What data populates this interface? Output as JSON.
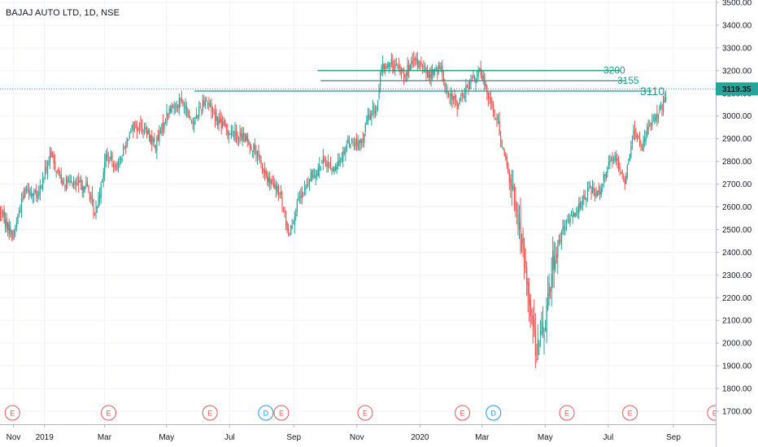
{
  "header": {
    "title": "BAJAJ AUTO LTD, 1D, NSE"
  },
  "colors": {
    "up": "#26a69a",
    "down": "#ef5350",
    "annotation": "#1c9a8a",
    "earnings": "#e05a5a",
    "dividend": "#2196f3",
    "grid": "#f0f3fa",
    "axis_text": "#131722",
    "price_label_bg": "#26a69a"
  },
  "chart_data": {
    "type": "candlestick",
    "ylim": [
      1670,
      3520
    ],
    "y_ticks": [
      "3500.00",
      "3400.00",
      "3300.00",
      "3200.00",
      "3100.00",
      "3000.00",
      "2900.00",
      "2800.00",
      "2700.00",
      "2600.00",
      "2500.00",
      "2400.00",
      "2300.00",
      "2200.00",
      "2100.00",
      "2000.00",
      "1900.00",
      "1800.00",
      "1700.00"
    ],
    "y_tick_values": [
      3500,
      3400,
      3300,
      3200,
      3100,
      3000,
      2900,
      2800,
      2700,
      2600,
      2500,
      2400,
      2300,
      2200,
      2100,
      2000,
      1900,
      1800,
      1700
    ],
    "x_ticks": [
      {
        "label": "Nov",
        "day": 13
      },
      {
        "label": "2019",
        "day": 43
      },
      {
        "label": "Mar",
        "day": 101
      },
      {
        "label": "May",
        "day": 161
      },
      {
        "label": "Jul",
        "day": 222
      },
      {
        "label": "Sep",
        "day": 284
      },
      {
        "label": "Nov",
        "day": 345
      },
      {
        "label": "2020",
        "day": 406
      },
      {
        "label": "Mar",
        "day": 466
      },
      {
        "label": "May",
        "day": 527
      },
      {
        "label": "Jul",
        "day": 588
      },
      {
        "label": "Sep",
        "day": 651
      }
    ],
    "price_path": [
      [
        0,
        2580
      ],
      [
        10,
        2470
      ],
      [
        20,
        2690
      ],
      [
        30,
        2640
      ],
      [
        40,
        2830
      ],
      [
        50,
        2710
      ],
      [
        60,
        2700
      ],
      [
        70,
        2690
      ],
      [
        76,
        2560
      ],
      [
        85,
        2820
      ],
      [
        95,
        2780
      ],
      [
        105,
        2950
      ],
      [
        115,
        2950
      ],
      [
        125,
        2870
      ],
      [
        135,
        3020
      ],
      [
        145,
        3070
      ],
      [
        155,
        2970
      ],
      [
        165,
        3080
      ],
      [
        175,
        2980
      ],
      [
        185,
        2930
      ],
      [
        195,
        2910
      ],
      [
        205,
        2850
      ],
      [
        215,
        2720
      ],
      [
        225,
        2660
      ],
      [
        232,
        2480
      ],
      [
        240,
        2620
      ],
      [
        250,
        2730
      ],
      [
        260,
        2800
      ],
      [
        270,
        2760
      ],
      [
        280,
        2890
      ],
      [
        290,
        2870
      ],
      [
        296,
        2990
      ],
      [
        303,
        3040
      ],
      [
        307,
        3210
      ],
      [
        315,
        3230
      ],
      [
        325,
        3190
      ],
      [
        335,
        3240
      ],
      [
        345,
        3180
      ],
      [
        355,
        3210
      ],
      [
        360,
        3100
      ],
      [
        368,
        3050
      ],
      [
        378,
        3140
      ],
      [
        385,
        3190
      ],
      [
        390,
        3150
      ],
      [
        395,
        3060
      ],
      [
        402,
        2940
      ],
      [
        410,
        2720
      ],
      [
        416,
        2580
      ],
      [
        420,
        2420
      ],
      [
        426,
        2200
      ],
      [
        432,
        1960
      ],
      [
        438,
        2080
      ],
      [
        445,
        2360
      ],
      [
        452,
        2480
      ],
      [
        460,
        2560
      ],
      [
        468,
        2620
      ],
      [
        475,
        2680
      ],
      [
        482,
        2660
      ],
      [
        489,
        2790
      ],
      [
        496,
        2820
      ],
      [
        503,
        2710
      ],
      [
        510,
        2930
      ],
      [
        517,
        2870
      ],
      [
        524,
        2980
      ],
      [
        531,
        3020
      ],
      [
        536,
        3070
      ]
    ],
    "candle_count": 537,
    "days_per_candle": 1.2,
    "horizontal_lines": [
      {
        "label": "3200",
        "value": 3200,
        "from_day": 307,
        "to_day": 600
      },
      {
        "label": "3155",
        "value": 3155,
        "from_day": 310,
        "to_day": 605
      },
      {
        "label": "3110",
        "value": 3110,
        "from_day": 188,
        "to_day": 630
      }
    ],
    "last_price": "3119.35",
    "last_price_value": 3119.35,
    "events": [
      {
        "label": "E",
        "kind": "earnings",
        "day": 12
      },
      {
        "label": "E",
        "kind": "earnings",
        "day": 105
      },
      {
        "label": "E",
        "kind": "earnings",
        "day": 203
      },
      {
        "label": "D",
        "kind": "dividend",
        "day": 257
      },
      {
        "label": "E",
        "kind": "earnings",
        "day": 272
      },
      {
        "label": "E",
        "kind": "earnings",
        "day": 353
      },
      {
        "label": "E",
        "kind": "earnings",
        "day": 447
      },
      {
        "label": "D",
        "kind": "dividend",
        "day": 477
      },
      {
        "label": "E",
        "kind": "earnings",
        "day": 548
      },
      {
        "label": "E",
        "kind": "earnings",
        "day": 609
      },
      {
        "label": "E",
        "kind": "earnings",
        "day": 691
      }
    ]
  }
}
